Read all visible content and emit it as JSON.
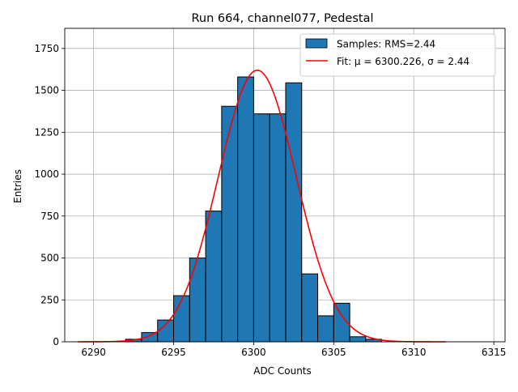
{
  "chart_data": {
    "type": "bar",
    "title": "Run 664, channel077, Pedestal",
    "xlabel": "ADC Counts",
    "ylabel": "Entries",
    "xlim": [
      6288.2,
      6315.7
    ],
    "ylim": [
      0,
      1870
    ],
    "grid": true,
    "legend_position": "top-right",
    "x_ticks": [
      6290,
      6295,
      6300,
      6305,
      6310,
      6315
    ],
    "y_ticks": [
      0,
      250,
      500,
      750,
      1000,
      1250,
      1500,
      1750
    ],
    "bin_width": 1,
    "series": [
      {
        "name": "Samples: RMS=2.44",
        "kind": "histogram",
        "color": "#1f77b4",
        "edge_color": "#000000",
        "bin_left_edges": [
          6292,
          6293,
          6294,
          6295,
          6296,
          6297,
          6298,
          6299,
          6300,
          6301,
          6302,
          6303,
          6304,
          6305,
          6306,
          6307
        ],
        "values": [
          15,
          55,
          130,
          275,
          500,
          780,
          1405,
          1580,
          1360,
          1360,
          1545,
          405,
          155,
          230,
          30,
          15
        ]
      },
      {
        "name": "Fit: μ = 6300.226, σ = 2.44",
        "kind": "gaussian",
        "color": "#ff0000",
        "mu": 6300.226,
        "sigma": 2.44,
        "amplitude": 1620,
        "x_range": [
          6289,
          6312
        ]
      }
    ]
  }
}
